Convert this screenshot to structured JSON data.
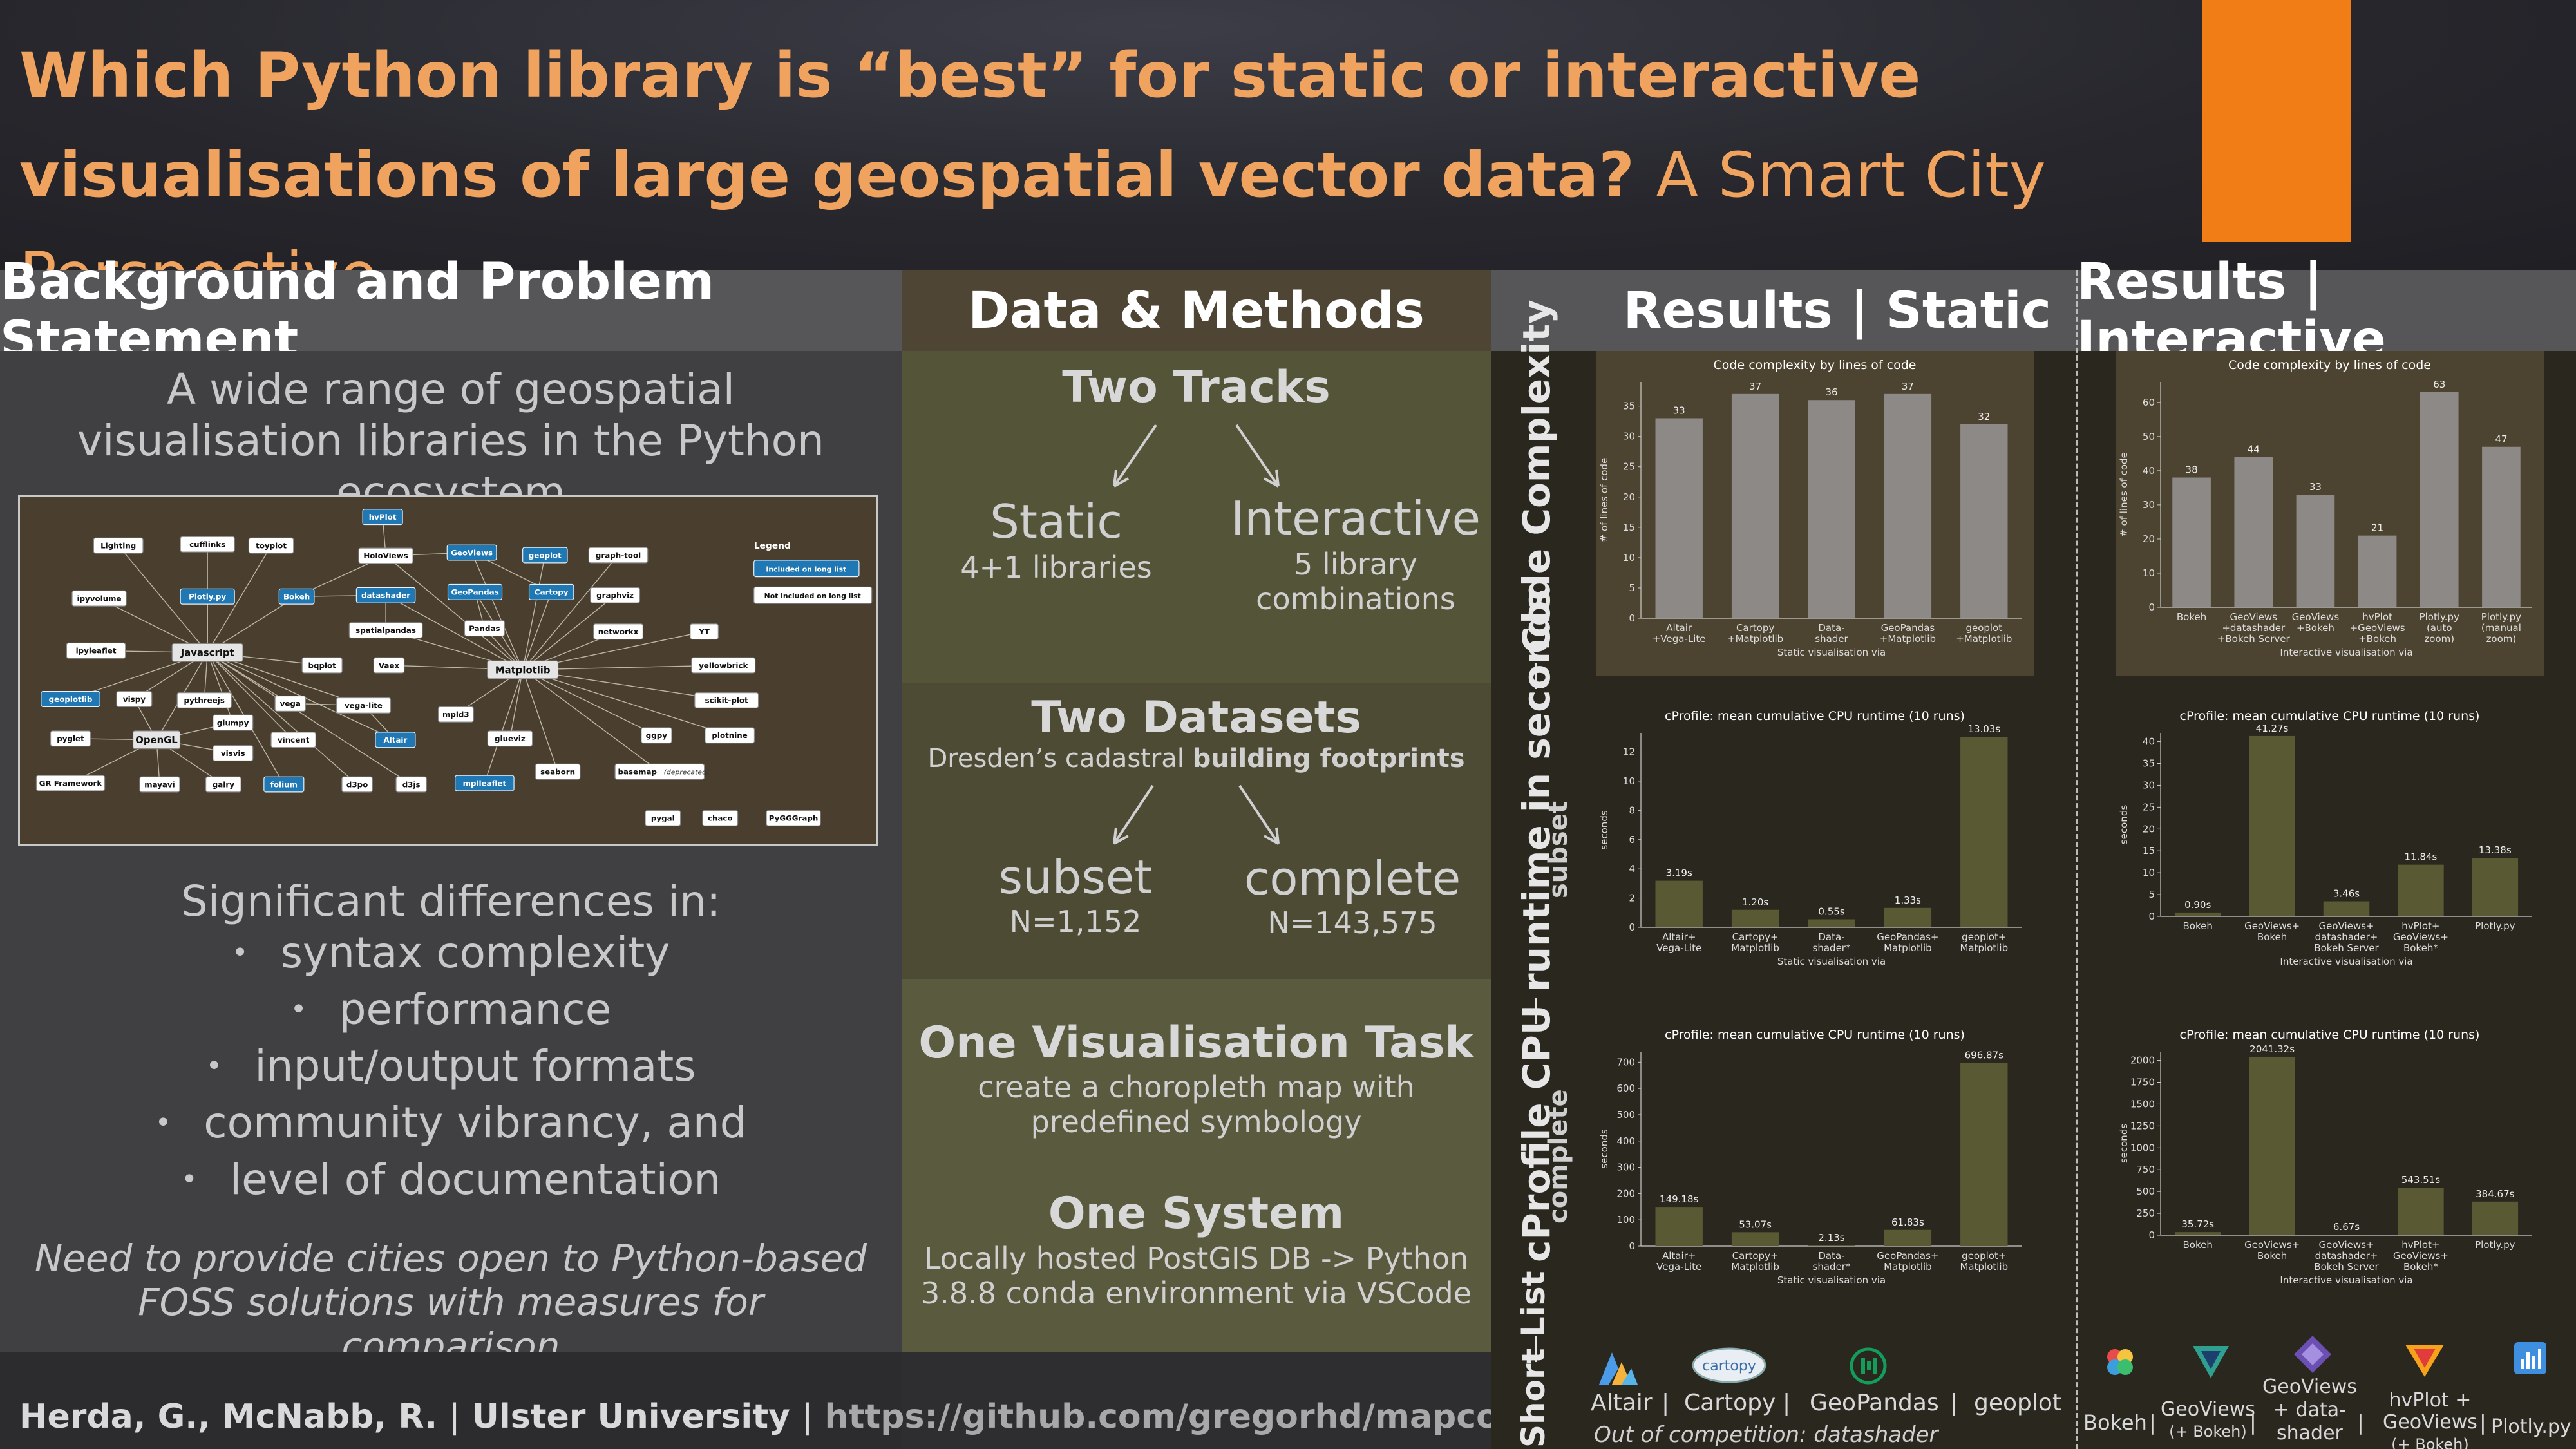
{
  "title": {
    "main": "Which Python library is “best” for static or interactive visualisations of large geospatial vector data?",
    "sub": "A Smart City Perspective"
  },
  "headers": {
    "background": "Background and Problem Statement",
    "data_methods": "Data & Methods",
    "results_static": "Results | Static",
    "results_interactive": "Results | Interactive"
  },
  "background": {
    "lead": "A wide range of geospatial visualisation libraries in the Python ecosystem",
    "diffs_title": "Significant differences in:",
    "diffs": [
      "syntax complexity",
      "performance",
      "input/output formats",
      "community vibrancy, and",
      "level of documentation"
    ],
    "need": "Need to provide cities open to Python-based FOSS solutions with measures for comparison"
  },
  "diagram": {
    "legend_title": "Legend",
    "legend_long": "Included on long list",
    "legend_not": "Not included on long list",
    "nodes": {
      "hvplot": "hvPlot",
      "lighting": "Lighting",
      "cufflinks": "cufflinks",
      "toyplot": "toyplot",
      "holoviews": "HoloViews",
      "geoviews": "GeoViews",
      "geoplot": "geoplot",
      "graphtool": "graph-tool",
      "ipyvolume": "ipyvolume",
      "plotlypy": "Plotly.py",
      "bokeh": "Bokeh",
      "datashader": "datashader",
      "geopandas": "GeoPandas",
      "cartopy": "Cartopy",
      "graphviz": "graphviz",
      "spatialpandas": "spatialpandas",
      "pandas": "Pandas",
      "networkx": "networkx",
      "yt": "YT",
      "ipyleaflet": "ipyleaflet",
      "javascript": "Javascript",
      "bqplot": "bqplot",
      "vaex": "Vaex",
      "matplotlib": "Matplotlib",
      "yellowbrick": "yellowbrick",
      "geoplotlib": "geoplotlib",
      "vispy": "vispy",
      "pythreejs": "pythreejs",
      "vega": "vega",
      "vegalite": "vega-lite",
      "mpld3": "mpld3",
      "scikitplot": "scikit-plot",
      "glumpy": "glumpy",
      "pyglet": "pyglet",
      "opengl": "OpenGL",
      "visvis": "visvis",
      "vincent": "vincent",
      "altair": "Altair",
      "glueviz": "glueviz",
      "ggpy": "ggpy",
      "plotnine": "plotnine",
      "grframework": "GR Framework",
      "mayavi": "mayavi",
      "galry": "galry",
      "folium": "folium",
      "d3po": "d3po",
      "d3js": "d3js",
      "mplleaflet": "mplleaflet",
      "seaborn": "seaborn",
      "basemap": "basemap",
      "basemap_note": "(deprecated)",
      "pygal": "pygal",
      "chaco": "chaco",
      "pygggraph": "PyGGGraph"
    }
  },
  "data_methods": {
    "tracks_title": "Two Tracks",
    "static_label": "Static",
    "static_sub": "4+1 libraries",
    "interactive_label": "Interactive",
    "interactive_sub_1": "5 library",
    "interactive_sub_2": "combinations",
    "datasets_title": "Two Datasets",
    "datasets_sub_plain": "Dresden’s cadastral",
    "datasets_sub_bold": "building footprints",
    "subset_label": "subset",
    "subset_n": "N=1,152",
    "complete_label": "complete",
    "complete_n": "N=143,575",
    "task_title": "One Visualisation Task",
    "task_sub_1": "create a choropleth map with",
    "task_sub_2": "predefined symbology",
    "system_title": "One System",
    "system_sub_1": "Locally hosted PostGIS DB -> Python",
    "system_sub_2": "3.8.8 conda environment via VSCode"
  },
  "row_labels": {
    "code_complexity": "Code Complexity",
    "cprofile": "cProfile CPU runtime in seconds",
    "subset": "subset",
    "complete": "complete",
    "short_list": "Short List"
  },
  "chart_data": [
    {
      "id": "static_loc",
      "type": "bar",
      "title": "Code complexity by lines of code",
      "ylabel": "# of lines of code",
      "xlabel": "Static visualisation via",
      "categories": [
        [
          "Altair",
          "+Vega-Lite"
        ],
        [
          "Cartopy",
          "+Matplotlib"
        ],
        [
          "Data-",
          "shader"
        ],
        [
          "GeoPandas",
          "+Matplotlib"
        ],
        [
          "geoplot",
          "+Matplotlib"
        ]
      ],
      "values": [
        33,
        37,
        36,
        37,
        32
      ],
      "value_labels": [
        "33",
        "37",
        "36",
        "37",
        "32"
      ],
      "ylim": [
        0,
        39
      ],
      "yticks": [
        0,
        5,
        10,
        15,
        20,
        25,
        30,
        35
      ],
      "bar_color": "#8c8987",
      "bg": "#4c4430"
    },
    {
      "id": "inter_loc",
      "type": "bar",
      "title": "Code complexity by lines of code",
      "ylabel": "# of lines of code",
      "xlabel": "Interactive visualisation via",
      "categories": [
        [
          "Bokeh"
        ],
        [
          "GeoViews",
          "+datashader",
          "+Bokeh Server"
        ],
        [
          "GeoViews",
          "+Bokeh"
        ],
        [
          "hvPlot",
          "+GeoViews",
          "+Bokeh"
        ],
        [
          "Plotly.py",
          "(auto",
          "zoom)"
        ],
        [
          "Plotly.py",
          "(manual",
          "zoom)"
        ]
      ],
      "values": [
        38,
        44,
        33,
        21,
        63,
        47
      ],
      "value_labels": [
        "38",
        "44",
        "33",
        "21",
        "63",
        "47"
      ],
      "ylim": [
        0,
        66
      ],
      "yticks": [
        0,
        10,
        20,
        30,
        40,
        50,
        60
      ],
      "bar_color": "#8c8987",
      "bg": "#4c4430"
    },
    {
      "id": "static_subset",
      "type": "bar",
      "title": "cProfile: mean cumulative CPU runtime (10 runs)",
      "ylabel": "seconds",
      "xlabel": "Static visualisation via",
      "categories": [
        [
          "Altair+",
          "Vega-Lite"
        ],
        [
          "Cartopy+",
          "Matplotlib"
        ],
        [
          "Data-",
          "shader*"
        ],
        [
          "GeoPandas+",
          "Matplotlib"
        ],
        [
          "geoplot+",
          "Matplotlib"
        ]
      ],
      "values": [
        3.19,
        1.2,
        0.55,
        1.33,
        13.03
      ],
      "value_labels": [
        "3.19s",
        "1.20s",
        "0.55s",
        "1.33s",
        "13.03s"
      ],
      "ylim": [
        0,
        13.3
      ],
      "yticks": [
        0,
        2,
        4,
        6,
        8,
        10,
        12
      ],
      "bar_color": "#595934",
      "bg": "#2a271f"
    },
    {
      "id": "inter_subset",
      "type": "bar",
      "title": "cProfile: mean cumulative CPU runtime (10 runs)",
      "ylabel": "seconds",
      "xlabel": "Interactive visualisation via",
      "categories": [
        [
          "Bokeh"
        ],
        [
          "GeoViews+",
          "Bokeh"
        ],
        [
          "GeoViews+",
          "datashader+",
          "Bokeh Server"
        ],
        [
          "hvPlot+",
          "GeoViews+",
          "Bokeh*"
        ],
        [
          "Plotly.py"
        ]
      ],
      "values": [
        0.9,
        41.27,
        3.46,
        11.84,
        13.38
      ],
      "value_labels": [
        "0.90s",
        "41.27s",
        "3.46s",
        "11.84s",
        "13.38s"
      ],
      "ylim": [
        0,
        42
      ],
      "yticks": [
        0,
        5,
        10,
        15,
        20,
        25,
        30,
        35,
        40
      ],
      "bar_color": "#595934",
      "bg": "#2a271f"
    },
    {
      "id": "static_complete",
      "type": "bar",
      "title": "cProfile: mean cumulative CPU runtime (10 runs)",
      "ylabel": "seconds",
      "xlabel": "Static visualisation via",
      "categories": [
        [
          "Altair+",
          "Vega-Lite"
        ],
        [
          "Cartopy+",
          "Matplotlib"
        ],
        [
          "Data-",
          "shader*"
        ],
        [
          "GeoPandas+",
          "Matplotlib"
        ],
        [
          "geoplot+",
          "Matplotlib"
        ]
      ],
      "values": [
        149.18,
        53.07,
        2.13,
        61.83,
        696.87
      ],
      "value_labels": [
        "149.18s",
        "53.07s",
        "2.13s",
        "61.83s",
        "696.87s"
      ],
      "ylim": [
        0,
        740
      ],
      "yticks": [
        0,
        100,
        200,
        300,
        400,
        500,
        600,
        700
      ],
      "bar_color": "#595934",
      "bg": "#2a271f"
    },
    {
      "id": "inter_complete",
      "type": "bar",
      "title": "cProfile: mean cumulative CPU runtime (10 runs)",
      "ylabel": "seconds",
      "xlabel": "Interactive visualisation via",
      "categories": [
        [
          "Bokeh"
        ],
        [
          "GeoViews+",
          "Bokeh"
        ],
        [
          "GeoViews+",
          "datashader+",
          "Bokeh Server"
        ],
        [
          "hvPlot+",
          "GeoViews+",
          "Bokeh*"
        ],
        [
          "Plotly.py"
        ]
      ],
      "values": [
        35.72,
        2041.32,
        6.67,
        543.51,
        384.67
      ],
      "value_labels": [
        "35.72s",
        "2041.32s",
        "6.67s",
        "543.51s",
        "384.67s"
      ],
      "ylim": [
        0,
        2100
      ],
      "yticks": [
        0,
        250,
        500,
        750,
        1000,
        1250,
        1500,
        1750,
        2000
      ],
      "bar_color": "#595934",
      "bg": "#2a271f"
    }
  ],
  "short_list": {
    "static": [
      "Altair",
      "Cartopy",
      "GeoPandas",
      "geoplot"
    ],
    "separator": "|",
    "out_of_competition": "Out of competition: datashader",
    "interactive": [
      [
        "Bokeh"
      ],
      [
        "GeoViews",
        "(+ Bokeh)"
      ],
      [
        "GeoViews",
        "+ data-",
        "shader"
      ],
      [
        "hvPlot +",
        "GeoViews",
        "(+ Bokeh)"
      ],
      [
        "Plotly.py"
      ]
    ],
    "cartopy_logo_text": "cartopy"
  },
  "footer": {
    "authors": "Herda, G., McNabb, R.",
    "affiliation": "Ulster University",
    "url": "https://github.com/gregorhd/mapcompare",
    "separator": "|"
  },
  "colors": {
    "title": "#f0a35e",
    "accent_orange": "#f07d16",
    "long_list_node": "#1f78b4",
    "grey_bar": "#8c8987",
    "olive_bar": "#595934"
  }
}
